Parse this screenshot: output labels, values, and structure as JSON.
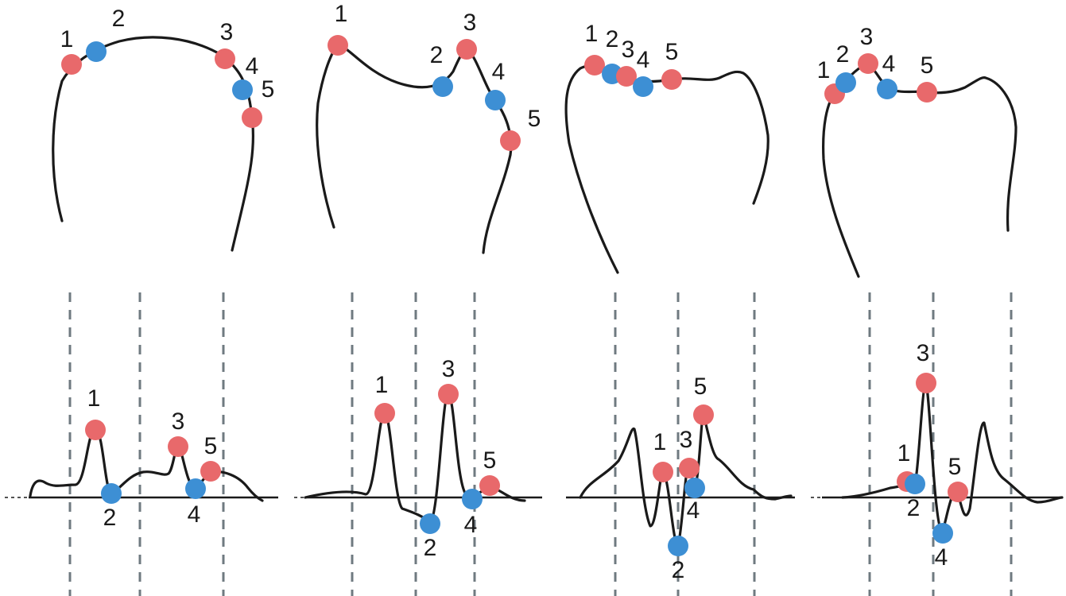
{
  "colors": {
    "extremum_max": "#e8696b",
    "extremum_min": "#3d8fd4",
    "line": "#1a1a1a",
    "guide": "#6f7a80"
  },
  "panels": [
    {
      "outline_markers": [
        {
          "label": "1",
          "kind": "max"
        },
        {
          "label": "2",
          "kind": "min"
        },
        {
          "label": "3",
          "kind": "max"
        },
        {
          "label": "4",
          "kind": "min"
        },
        {
          "label": "5",
          "kind": "max"
        }
      ],
      "signal_markers": [
        {
          "label": "1",
          "kind": "max"
        },
        {
          "label": "2",
          "kind": "min"
        },
        {
          "label": "3",
          "kind": "max"
        },
        {
          "label": "4",
          "kind": "min"
        },
        {
          "label": "5",
          "kind": "max"
        }
      ]
    },
    {
      "outline_markers": [
        {
          "label": "1",
          "kind": "max"
        },
        {
          "label": "2",
          "kind": "min"
        },
        {
          "label": "3",
          "kind": "max"
        },
        {
          "label": "4",
          "kind": "min"
        },
        {
          "label": "5",
          "kind": "max"
        }
      ],
      "signal_markers": [
        {
          "label": "1",
          "kind": "max"
        },
        {
          "label": "2",
          "kind": "min"
        },
        {
          "label": "3",
          "kind": "max"
        },
        {
          "label": "4",
          "kind": "min"
        },
        {
          "label": "5",
          "kind": "max"
        }
      ]
    },
    {
      "outline_markers": [
        {
          "label": "1",
          "kind": "max"
        },
        {
          "label": "2",
          "kind": "min"
        },
        {
          "label": "3",
          "kind": "max"
        },
        {
          "label": "4",
          "kind": "min"
        },
        {
          "label": "5",
          "kind": "max"
        }
      ],
      "signal_markers": [
        {
          "label": "1",
          "kind": "max"
        },
        {
          "label": "2",
          "kind": "min"
        },
        {
          "label": "3",
          "kind": "max"
        },
        {
          "label": "4",
          "kind": "min"
        },
        {
          "label": "5",
          "kind": "max"
        }
      ]
    },
    {
      "outline_markers": [
        {
          "label": "1",
          "kind": "max"
        },
        {
          "label": "2",
          "kind": "min"
        },
        {
          "label": "3",
          "kind": "max"
        },
        {
          "label": "4",
          "kind": "min"
        },
        {
          "label": "5",
          "kind": "max"
        }
      ],
      "signal_markers": [
        {
          "label": "1",
          "kind": "max"
        },
        {
          "label": "2",
          "kind": "min"
        },
        {
          "label": "3",
          "kind": "max"
        },
        {
          "label": "4",
          "kind": "min"
        },
        {
          "label": "5",
          "kind": "max"
        }
      ]
    }
  ]
}
